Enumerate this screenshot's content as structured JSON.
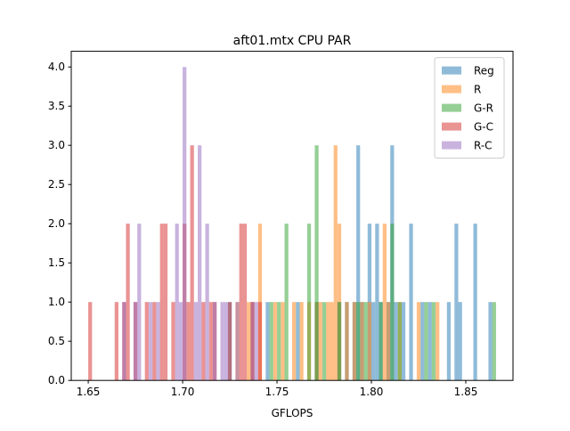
{
  "chart_data": {
    "type": "histogram",
    "title": "aft01.mtx CPU PAR",
    "xlabel": "GFLOPS",
    "ylabel": "",
    "xlim": [
      1.641,
      1.875
    ],
    "ylim": [
      0,
      4.2
    ],
    "x_ticks": [
      "1.65",
      "1.70",
      "1.75",
      "1.80",
      "1.85"
    ],
    "y_ticks": [
      "0.0",
      "0.5",
      "1.0",
      "1.5",
      "2.0",
      "2.5",
      "3.0",
      "3.5",
      "4.0"
    ],
    "grid": false,
    "legend_position": "top-right",
    "bin_width": 0.002,
    "opacity": 0.5,
    "series": [
      {
        "name": "Reg",
        "color": "#1f77b4",
        "bins": [
          [
            1.724,
            1
          ],
          [
            1.744,
            1
          ],
          [
            1.76,
            1
          ],
          [
            1.77,
            1
          ],
          [
            1.782,
            1
          ],
          [
            1.786,
            1
          ],
          [
            1.79,
            1
          ],
          [
            1.792,
            3
          ],
          [
            1.794,
            1
          ],
          [
            1.798,
            2
          ],
          [
            1.8,
            1
          ],
          [
            1.802,
            2
          ],
          [
            1.804,
            1
          ],
          [
            1.808,
            1
          ],
          [
            1.81,
            3
          ],
          [
            1.812,
            1
          ],
          [
            1.816,
            1
          ],
          [
            1.82,
            2
          ],
          [
            1.826,
            1
          ],
          [
            1.83,
            1
          ],
          [
            1.84,
            1
          ],
          [
            1.844,
            2
          ],
          [
            1.846,
            1
          ],
          [
            1.854,
            2
          ],
          [
            1.862,
            1
          ]
        ]
      },
      {
        "name": "R",
        "color": "#ff7f0e",
        "bins": [
          [
            1.728,
            1
          ],
          [
            1.734,
            1
          ],
          [
            1.736,
            1
          ],
          [
            1.74,
            2
          ],
          [
            1.748,
            1
          ],
          [
            1.752,
            1
          ],
          [
            1.758,
            1
          ],
          [
            1.762,
            1
          ],
          [
            1.766,
            1
          ],
          [
            1.77,
            1
          ],
          [
            1.772,
            1
          ],
          [
            1.776,
            1
          ],
          [
            1.778,
            1
          ],
          [
            1.78,
            3
          ],
          [
            1.782,
            2
          ],
          [
            1.786,
            1
          ],
          [
            1.79,
            1
          ],
          [
            1.794,
            1
          ],
          [
            1.798,
            1
          ],
          [
            1.806,
            2
          ],
          [
            1.808,
            1
          ],
          [
            1.814,
            1
          ],
          [
            1.824,
            1
          ],
          [
            1.834,
            1
          ]
        ]
      },
      {
        "name": "G-R",
        "color": "#2ca02c",
        "bins": [
          [
            1.746,
            1
          ],
          [
            1.75,
            1
          ],
          [
            1.754,
            2
          ],
          [
            1.766,
            2
          ],
          [
            1.77,
            3
          ],
          [
            1.774,
            1
          ],
          [
            1.782,
            1
          ],
          [
            1.792,
            1
          ],
          [
            1.796,
            1
          ],
          [
            1.804,
            1
          ],
          [
            1.81,
            2
          ],
          [
            1.814,
            1
          ],
          [
            1.828,
            1
          ],
          [
            1.832,
            1
          ],
          [
            1.864,
            1
          ]
        ]
      },
      {
        "name": "G-C",
        "color": "#d62728",
        "bins": [
          [
            1.65,
            1
          ],
          [
            1.664,
            1
          ],
          [
            1.668,
            1
          ],
          [
            1.67,
            2
          ],
          [
            1.674,
            1
          ],
          [
            1.68,
            1
          ],
          [
            1.684,
            1
          ],
          [
            1.688,
            2
          ],
          [
            1.69,
            2
          ],
          [
            1.694,
            1
          ],
          [
            1.7,
            2
          ],
          [
            1.702,
            1
          ],
          [
            1.704,
            3
          ],
          [
            1.71,
            1
          ],
          [
            1.714,
            1
          ],
          [
            1.716,
            1
          ],
          [
            1.724,
            1
          ],
          [
            1.73,
            2
          ],
          [
            1.732,
            2
          ],
          [
            1.736,
            1
          ],
          [
            1.74,
            1
          ]
        ]
      },
      {
        "name": "R-C",
        "color": "#9467bd",
        "bins": [
          [
            1.668,
            1
          ],
          [
            1.674,
            1
          ],
          [
            1.676,
            2
          ],
          [
            1.682,
            1
          ],
          [
            1.686,
            1
          ],
          [
            1.696,
            2
          ],
          [
            1.698,
            1
          ],
          [
            1.7,
            4
          ],
          [
            1.706,
            1
          ],
          [
            1.708,
            3
          ],
          [
            1.712,
            2
          ],
          [
            1.716,
            1
          ],
          [
            1.72,
            1
          ],
          [
            1.722,
            1
          ],
          [
            1.728,
            1
          ],
          [
            1.736,
            1
          ],
          [
            1.738,
            1
          ]
        ]
      }
    ]
  }
}
